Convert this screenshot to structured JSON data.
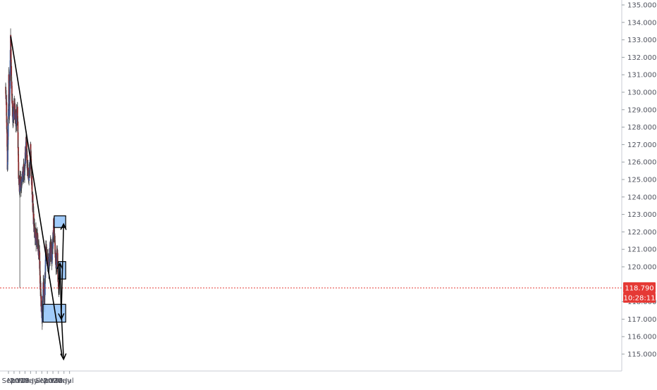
{
  "chart_data": {
    "type": "candlestick",
    "title": "",
    "xlabel": "",
    "ylabel": "",
    "ylim": [
      114.4,
      135.6
    ],
    "x_ticks": [
      "Sep",
      "Nov",
      "2019",
      "Mar",
      "May",
      "Jul",
      "Sep",
      "Nov",
      "2020",
      "Mar",
      "May",
      "Jul"
    ],
    "y_ticks": [
      "115.000",
      "116.000",
      "117.000",
      "118.000",
      "119.000",
      "120.000",
      "121.000",
      "122.000",
      "123.000",
      "124.000",
      "125.000",
      "126.000",
      "127.000",
      "128.000",
      "129.000",
      "130.000",
      "131.000",
      "132.000",
      "133.000",
      "134.000",
      "135.000"
    ],
    "x_range": [
      "2018-08-01",
      "2020-07-31"
    ],
    "grid": false,
    "colors": {
      "up": "#3b5998",
      "down": "#8b2a2a",
      "wick": "#444444",
      "zone_fill": "#90c2f9",
      "zone_stroke": "#000000",
      "price_label": "#e53935",
      "current_line": "#e53935"
    },
    "current_price": {
      "value": 118.79,
      "label": "118.790",
      "countdown": "10:28:11"
    },
    "price_path": [
      [
        "2018-08-01",
        130.3
      ],
      [
        "2018-08-10",
        129.3
      ],
      [
        "2018-08-22",
        125.5
      ],
      [
        "2018-09-05",
        130.6
      ],
      [
        "2018-09-12",
        129.1
      ],
      [
        "2018-09-25",
        133.1
      ],
      [
        "2018-10-05",
        130.5
      ],
      [
        "2018-10-20",
        128.3
      ],
      [
        "2018-11-05",
        129.2
      ],
      [
        "2018-11-20",
        128.4
      ],
      [
        "2018-12-10",
        128.8
      ],
      [
        "2018-12-20",
        125.3
      ],
      [
        "2019-01-03",
        124.6
      ],
      [
        "2019-01-25",
        125.0
      ],
      [
        "2019-02-25",
        125.7
      ],
      [
        "2019-03-15",
        127.2
      ],
      [
        "2019-03-28",
        125.5
      ],
      [
        "2019-04-20",
        125.2
      ],
      [
        "2019-05-01",
        126.6
      ],
      [
        "2019-05-20",
        124.2
      ],
      [
        "2019-06-05",
        122.5
      ],
      [
        "2019-06-25",
        121.8
      ],
      [
        "2019-07-15",
        121.5
      ],
      [
        "2019-08-05",
        120.8
      ],
      [
        "2019-08-20",
        118.4
      ],
      [
        "2019-09-01",
        117.5
      ],
      [
        "2019-09-05",
        117.0
      ],
      [
        "2019-09-20",
        119.2
      ],
      [
        "2019-10-01",
        117.9
      ],
      [
        "2019-10-15",
        121.0
      ],
      [
        "2019-11-01",
        120.5
      ],
      [
        "2019-11-15",
        120.0
      ],
      [
        "2019-12-05",
        121.2
      ],
      [
        "2019-12-20",
        120.5
      ],
      [
        "2020-01-10",
        122.4
      ],
      [
        "2020-01-20",
        121.4
      ],
      [
        "2020-02-05",
        120.0
      ],
      [
        "2020-02-20",
        121.0
      ],
      [
        "2020-02-28",
        119.0
      ],
      [
        "2020-03-05",
        118.8
      ]
    ],
    "trendline": {
      "start": [
        "2018-09-26",
        133.2
      ],
      "end": [
        "2020-04-10",
        114.9
      ]
    },
    "zones": [
      {
        "x0": "2020-01-15",
        "x1": "2020-05-20",
        "y0": 122.25,
        "y1": 122.92
      },
      {
        "x0": "2020-03-02",
        "x1": "2020-05-20",
        "y0": 119.3,
        "y1": 120.3
      },
      {
        "x0": "2019-09-15",
        "x1": "2020-05-20",
        "y0": 116.83,
        "y1": 117.85
      }
    ],
    "arrows": [
      {
        "from": [
          "2020-03-07",
          118.4
        ],
        "to": [
          "2020-03-19",
          120.2
        ]
      },
      {
        "from": [
          "2020-03-19",
          120.2
        ],
        "to": [
          "2020-04-02",
          117.0
        ]
      },
      {
        "from": [
          "2020-04-02",
          117.4
        ],
        "to": [
          "2020-04-27",
          122.45
        ]
      },
      {
        "from": [
          "2020-04-02",
          117.4
        ],
        "to": [
          "2020-04-27",
          114.7
        ]
      }
    ],
    "spike": {
      "date": "2019-01-03",
      "low": 118.8
    }
  }
}
